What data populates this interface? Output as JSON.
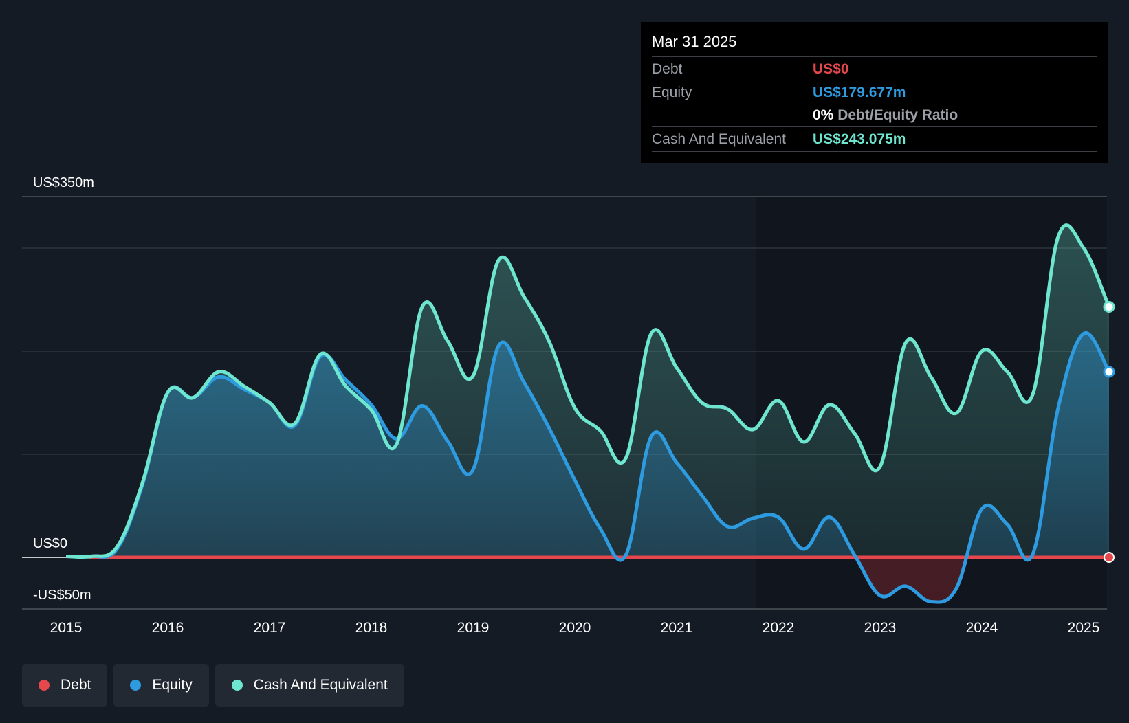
{
  "tooltip": {
    "date": "Mar 31 2025",
    "debt_label": "Debt",
    "debt_value": "US$0",
    "equity_label": "Equity",
    "equity_value": "US$179.677m",
    "ratio_pct": "0%",
    "ratio_label": "Debt/Equity Ratio",
    "cash_label": "Cash And Equivalent",
    "cash_value": "US$243.075m"
  },
  "legend": [
    {
      "label": "Debt",
      "color": "#e5474d"
    },
    {
      "label": "Equity",
      "color": "#2e9be0"
    },
    {
      "label": "Cash And Equivalent",
      "color": "#6ee6cf"
    }
  ],
  "colors": {
    "debt": "#e5474d",
    "equity": "#2e9be0",
    "cash": "#6ee6cf",
    "background": "#151b24",
    "tooltip_bg": "#000000"
  },
  "chart_data": {
    "type": "area",
    "xlabel": "",
    "ylabel": "",
    "y_tick_labels": [
      {
        "value": 350,
        "label": "US$350m"
      },
      {
        "value": 0,
        "label": "US$0"
      },
      {
        "value": -50,
        "label": "-US$50m"
      }
    ],
    "ylim": [
      -50,
      350
    ],
    "xlim": [
      2014.6,
      2025.25
    ],
    "x_ticks": [
      2015,
      2016,
      2017,
      2018,
      2019,
      2020,
      2021,
      2022,
      2023,
      2024,
      2025
    ],
    "x_tick_labels": [
      "2015",
      "2016",
      "2017",
      "2018",
      "2019",
      "2020",
      "2021",
      "2022",
      "2023",
      "2024",
      "2025"
    ],
    "grid": true,
    "legend_position": "bottom-left",
    "series": [
      {
        "name": "Debt",
        "color": "#e5474d",
        "points": [
          [
            2015.0,
            0
          ],
          [
            2025.25,
            0
          ]
        ]
      },
      {
        "name": "Equity",
        "color": "#2e9be0",
        "points": [
          [
            2015.0,
            1
          ],
          [
            2015.25,
            1
          ],
          [
            2015.5,
            8
          ],
          [
            2015.75,
            70
          ],
          [
            2016.0,
            160
          ],
          [
            2016.25,
            155
          ],
          [
            2016.5,
            175
          ],
          [
            2016.75,
            163
          ],
          [
            2017.0,
            150
          ],
          [
            2017.25,
            128
          ],
          [
            2017.5,
            195
          ],
          [
            2017.75,
            172
          ],
          [
            2018.0,
            148
          ],
          [
            2018.25,
            115
          ],
          [
            2018.5,
            147
          ],
          [
            2018.75,
            113
          ],
          [
            2019.0,
            85
          ],
          [
            2019.25,
            205
          ],
          [
            2019.5,
            170
          ],
          [
            2019.75,
            125
          ],
          [
            2020.0,
            75
          ],
          [
            2020.25,
            28
          ],
          [
            2020.5,
            2
          ],
          [
            2020.75,
            117
          ],
          [
            2021.0,
            92
          ],
          [
            2021.25,
            60
          ],
          [
            2021.5,
            30
          ],
          [
            2021.75,
            38
          ],
          [
            2022.0,
            39
          ],
          [
            2022.25,
            8
          ],
          [
            2022.5,
            39
          ],
          [
            2022.75,
            2
          ],
          [
            2023.0,
            -37
          ],
          [
            2023.25,
            -28
          ],
          [
            2023.5,
            -43
          ],
          [
            2023.75,
            -30
          ],
          [
            2024.0,
            47
          ],
          [
            2024.25,
            32
          ],
          [
            2024.5,
            3
          ],
          [
            2024.75,
            145
          ],
          [
            2025.0,
            217
          ],
          [
            2025.25,
            180
          ]
        ]
      },
      {
        "name": "Cash And Equivalent",
        "color": "#6ee6cf",
        "points": [
          [
            2015.0,
            1
          ],
          [
            2015.25,
            1
          ],
          [
            2015.5,
            10
          ],
          [
            2015.75,
            72
          ],
          [
            2016.0,
            160
          ],
          [
            2016.25,
            155
          ],
          [
            2016.5,
            180
          ],
          [
            2016.75,
            166
          ],
          [
            2017.0,
            150
          ],
          [
            2017.25,
            130
          ],
          [
            2017.5,
            197
          ],
          [
            2017.75,
            166
          ],
          [
            2018.0,
            143
          ],
          [
            2018.25,
            110
          ],
          [
            2018.5,
            243
          ],
          [
            2018.75,
            210
          ],
          [
            2019.0,
            176
          ],
          [
            2019.25,
            288
          ],
          [
            2019.5,
            253
          ],
          [
            2019.75,
            209
          ],
          [
            2020.0,
            145
          ],
          [
            2020.25,
            123
          ],
          [
            2020.5,
            96
          ],
          [
            2020.75,
            217
          ],
          [
            2021.0,
            184
          ],
          [
            2021.25,
            150
          ],
          [
            2021.5,
            144
          ],
          [
            2021.75,
            124
          ],
          [
            2022.0,
            152
          ],
          [
            2022.25,
            112
          ],
          [
            2022.5,
            148
          ],
          [
            2022.75,
            120
          ],
          [
            2023.0,
            88
          ],
          [
            2023.25,
            208
          ],
          [
            2023.5,
            175
          ],
          [
            2023.75,
            140
          ],
          [
            2024.0,
            200
          ],
          [
            2024.25,
            180
          ],
          [
            2024.5,
            158
          ],
          [
            2024.75,
            311
          ],
          [
            2025.0,
            300
          ],
          [
            2025.25,
            243
          ]
        ]
      }
    ]
  }
}
